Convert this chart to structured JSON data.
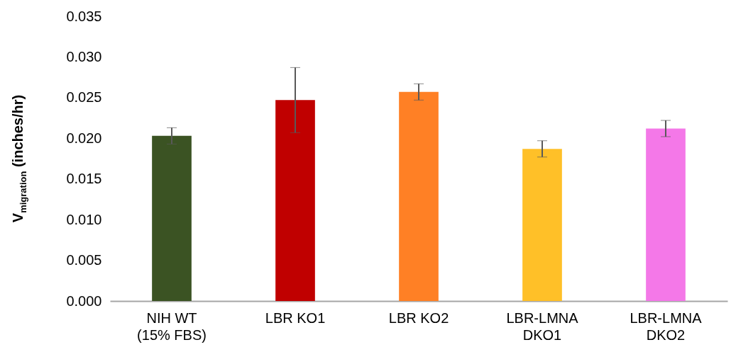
{
  "chart_data": {
    "type": "bar",
    "ylabel": "V$_{migration}$ (inches/hr)",
    "categories": [
      "NIH WT\n(15% FBS)",
      "LBR KO1",
      "LBR KO2",
      "LBR-LMNA\nDKO1",
      "LBR-LMNA\nDKO2"
    ],
    "values": [
      0.0203,
      0.0247,
      0.0257,
      0.0187,
      0.0212
    ],
    "errors": [
      0.001,
      0.004,
      0.001,
      0.001,
      0.001
    ],
    "colors": [
      "#3b5323",
      "#c00000",
      "#ff8025",
      "#ffc028",
      "#f478e8"
    ],
    "ylim": [
      0,
      0.035
    ],
    "yticks": [
      {
        "value": 0,
        "label": "0.000"
      },
      0.005,
      {
        "value": 0.01,
        "label": "0.010"
      },
      0.015,
      {
        "value": 0.02,
        "label": "0.020"
      },
      0.025,
      {
        "value": 0.03,
        "label": "0.030"
      },
      0.035
    ],
    "grid": false,
    "legend": false
  }
}
